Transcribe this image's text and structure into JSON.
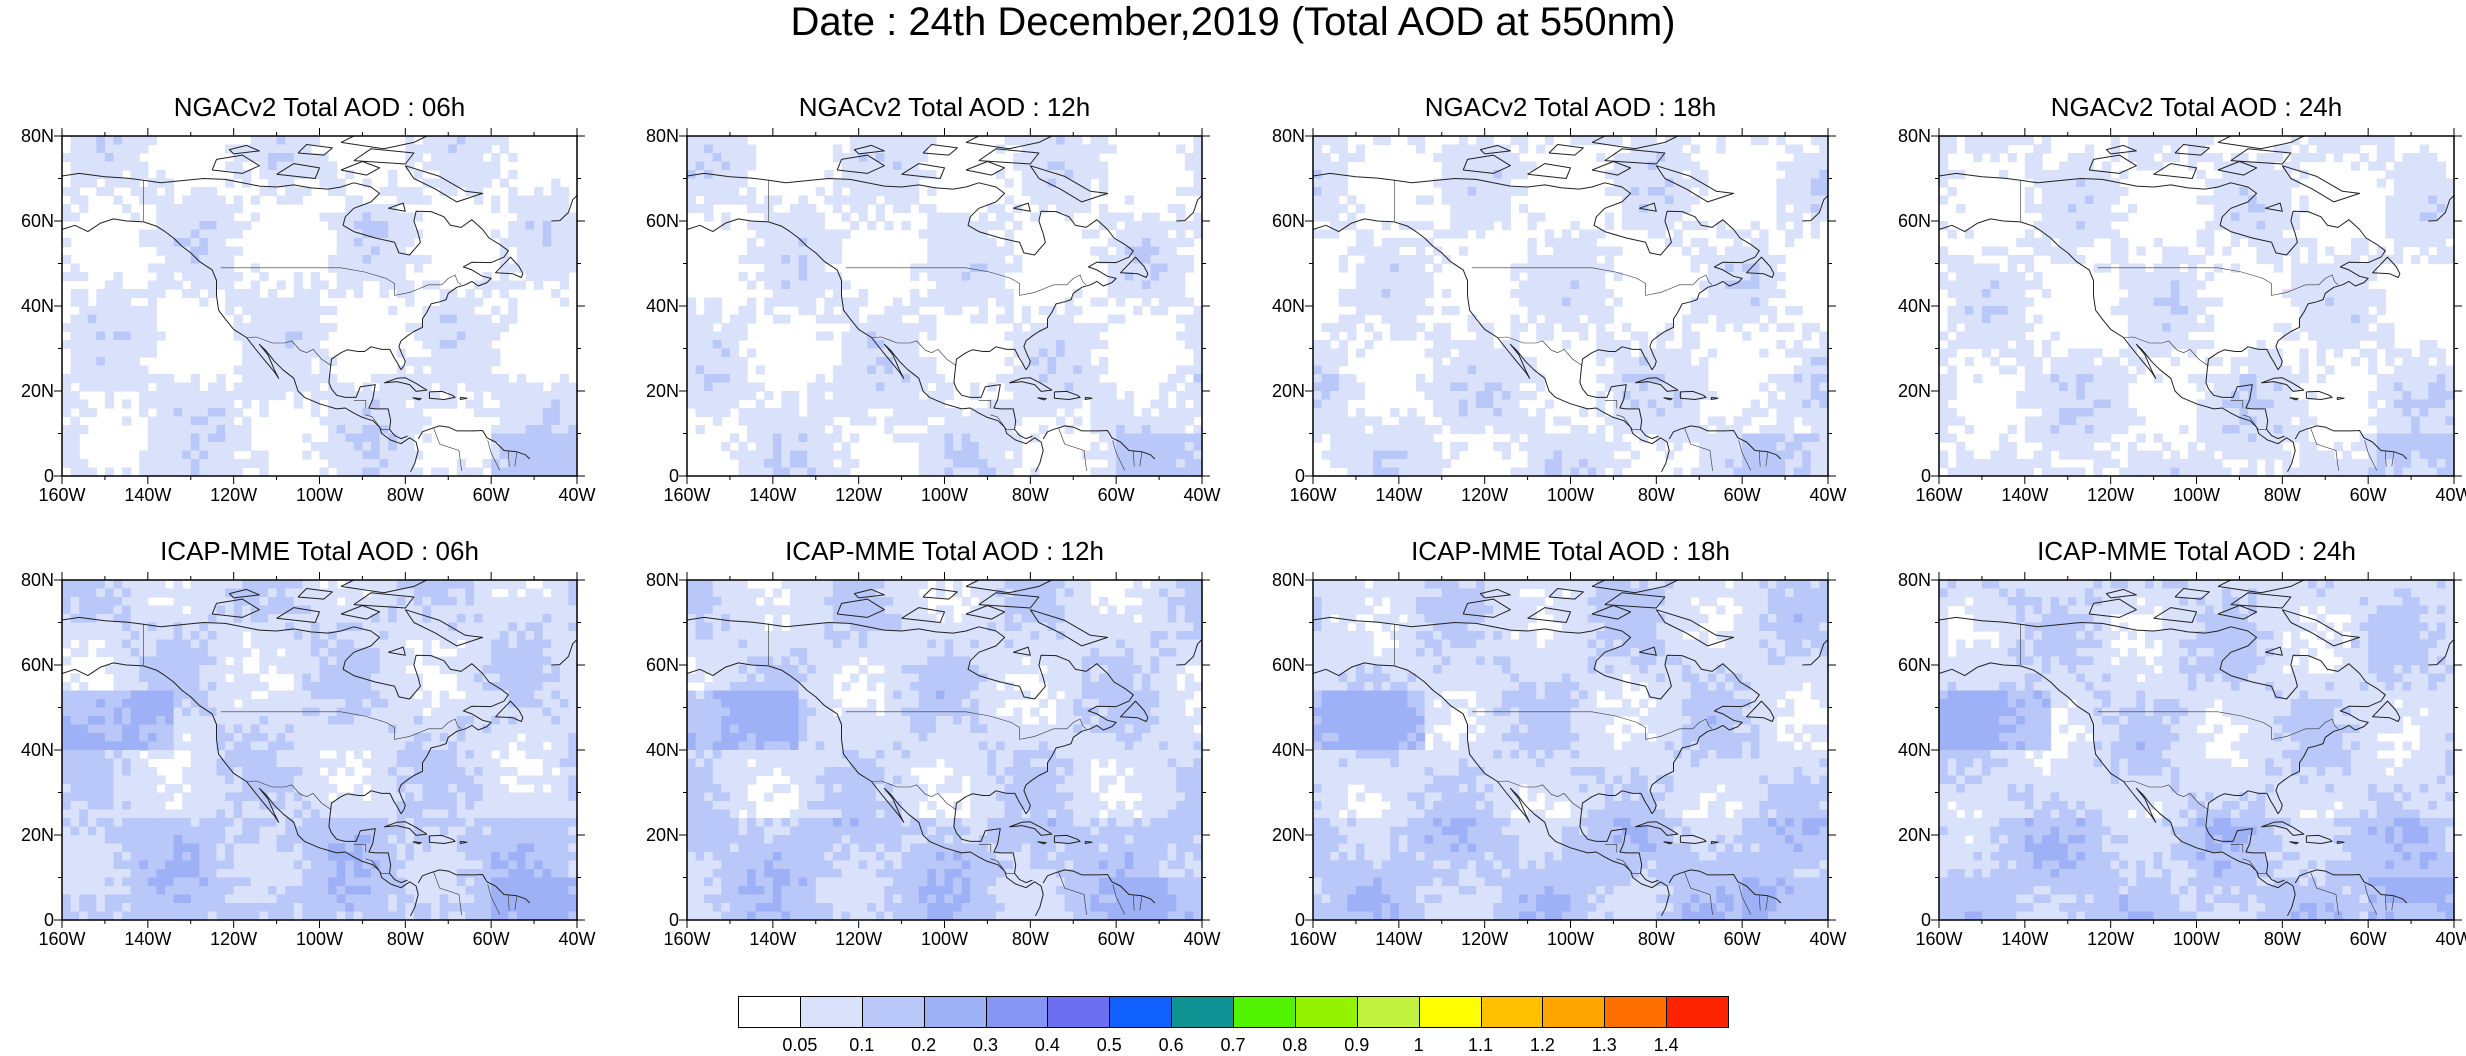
{
  "title": "Date : 24th December,2019 (Total AOD at 550nm)",
  "panels": [
    {
      "title": "NGACv2 Total AOD : 06h",
      "model": "NGACv2",
      "hour": "06h"
    },
    {
      "title": "NGACv2 Total AOD : 12h",
      "model": "NGACv2",
      "hour": "12h"
    },
    {
      "title": "NGACv2 Total AOD : 18h",
      "model": "NGACv2",
      "hour": "18h"
    },
    {
      "title": "NGACv2 Total AOD : 24h",
      "model": "NGACv2",
      "hour": "24h"
    },
    {
      "title": "ICAP-MME Total AOD : 06h",
      "model": "ICAP-MME",
      "hour": "06h"
    },
    {
      "title": "ICAP-MME Total AOD : 12h",
      "model": "ICAP-MME",
      "hour": "12h"
    },
    {
      "title": "ICAP-MME Total AOD : 18h",
      "model": "ICAP-MME",
      "hour": "18h"
    },
    {
      "title": "ICAP-MME Total AOD : 24h",
      "model": "ICAP-MME",
      "hour": "24h"
    }
  ],
  "lat_ticks": [
    "80N",
    "60N",
    "40N",
    "20N",
    "0"
  ],
  "lon_ticks": [
    "160W",
    "140W",
    "120W",
    "100W",
    "80W",
    "60W",
    "40W"
  ],
  "map_extent": {
    "lon": [
      -160,
      -40
    ],
    "lat": [
      0,
      80
    ]
  },
  "colorbar": {
    "labels": [
      "0.05",
      "0.1",
      "0.2",
      "0.3",
      "0.4",
      "0.5",
      "0.6",
      "0.7",
      "0.8",
      "0.9",
      "1",
      "1.1",
      "1.2",
      "1.3",
      "1.4"
    ],
    "colors": [
      "#ffffff",
      "#d9e1fb",
      "#b9c8f9",
      "#9fb1f6",
      "#8896f3",
      "#6b6ff0",
      "#0f60fd",
      "#0f9393",
      "#52f300",
      "#93f300",
      "#c0f23f",
      "#ffff00",
      "#ffc000",
      "#ffa500",
      "#ff7000",
      "#ff2400"
    ]
  }
}
